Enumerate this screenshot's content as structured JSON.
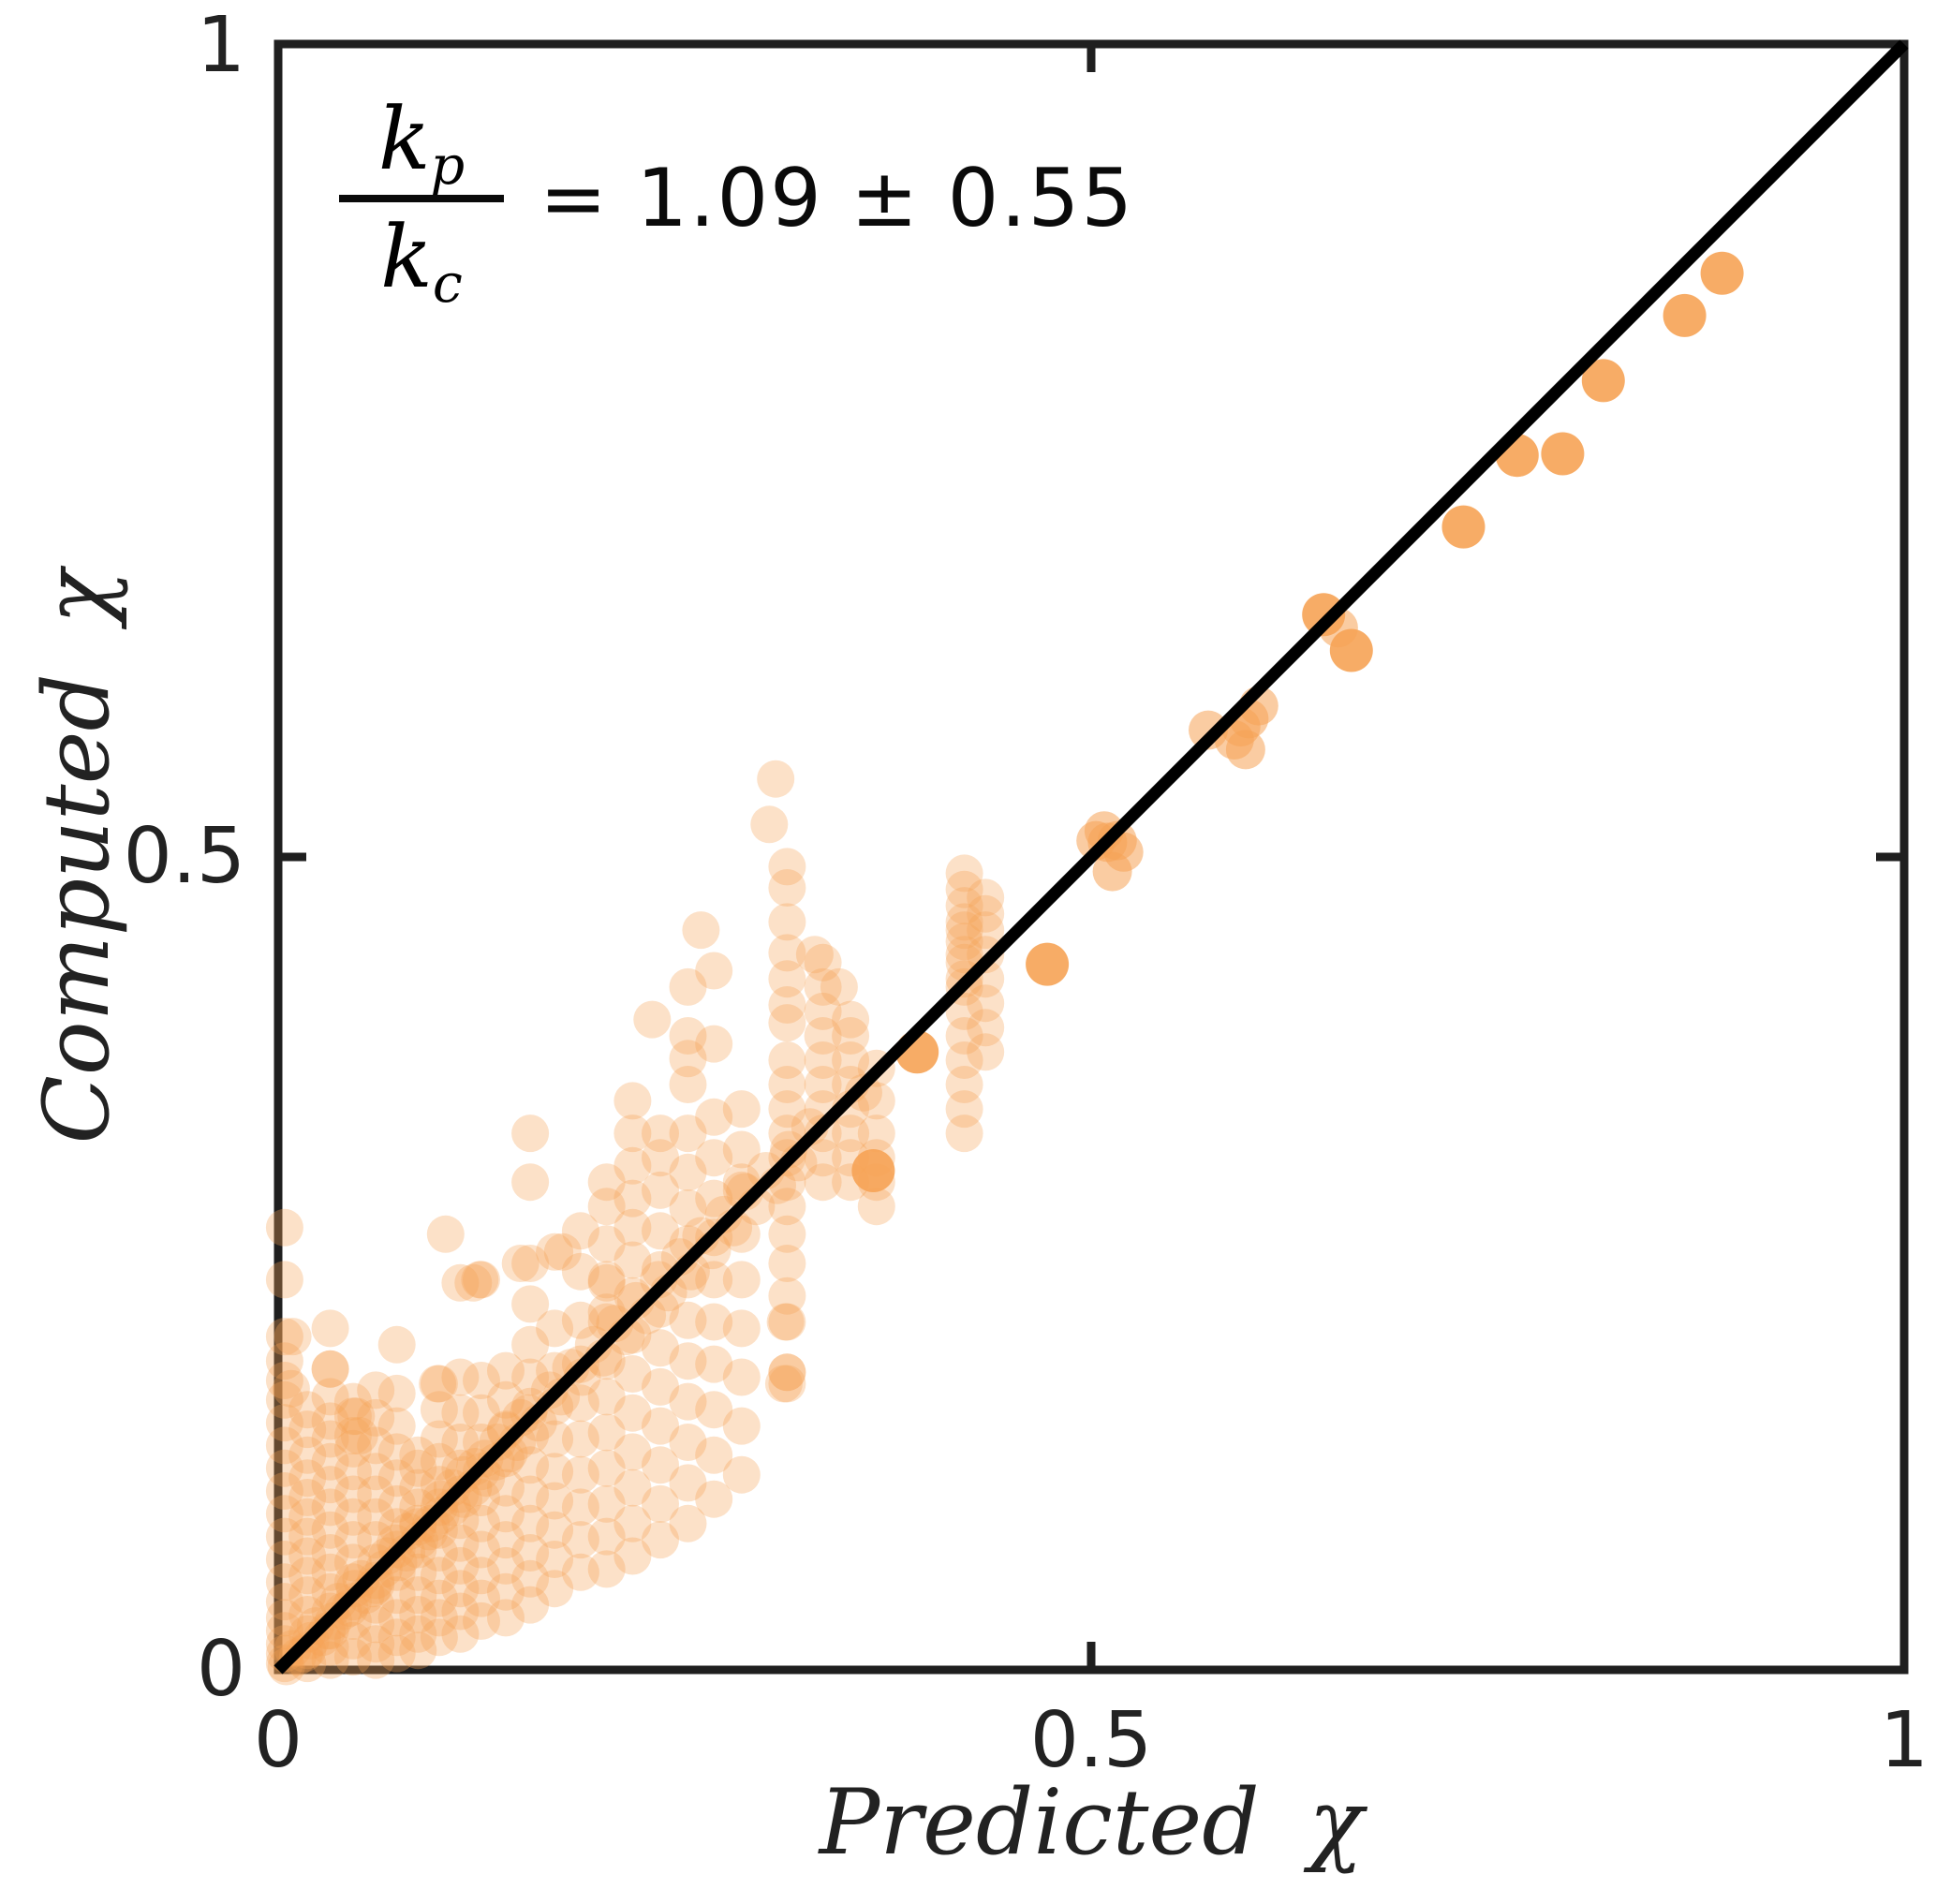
{
  "chart_data": {
    "type": "scatter",
    "xlabel": "Predicted χ",
    "ylabel": "Computed χ",
    "xlim": [
      0,
      1
    ],
    "ylim": [
      0,
      1
    ],
    "xtick_labels": [
      "0",
      "0.5",
      "1"
    ],
    "ytick_labels": [
      "0",
      "0.5",
      "1"
    ],
    "xticks": [
      0,
      0.5,
      1
    ],
    "yticks": [
      0,
      0.5,
      1
    ],
    "grid": "off",
    "legend": "none",
    "identity_line": {
      "from": [
        0,
        0
      ],
      "to": [
        1,
        1
      ],
      "color": "#000000"
    },
    "annotation": {
      "fraction_numerator": "k",
      "fraction_numerator_sub": "p",
      "fraction_denominator": "k",
      "fraction_denominator_sub": "c",
      "equation": "= 1.09 ± 0.55"
    },
    "style": {
      "marker_color": "#F6A355",
      "alpha_cloud": 0.32,
      "alpha_semi": 0.55,
      "alpha_solid": 0.9,
      "frame_color": "#1f1f1f",
      "line_color": "#000000",
      "text_color": "#222222"
    },
    "series": {
      "columns": [
        {
          "x": 0.004,
          "ys": [
            0.004,
            0.01,
            0.016,
            0.024,
            0.032,
            0.042,
            0.054,
            0.068,
            0.082,
            0.096,
            0.11,
            0.124,
            0.138,
            0.152,
            0.166,
            0.178,
            0.19,
            0.205,
            0.24,
            0.272
          ]
        },
        {
          "x": 0.018,
          "ys": [
            0.004,
            0.012,
            0.022,
            0.034,
            0.046,
            0.058,
            0.07,
            0.082,
            0.094,
            0.106,
            0.118,
            0.132,
            0.148,
            0.16
          ]
        },
        {
          "x": 0.032,
          "ys": [
            0.006,
            0.014,
            0.024,
            0.036,
            0.048,
            0.06,
            0.072,
            0.086,
            0.1,
            0.114,
            0.128,
            0.142,
            0.153,
            0.168,
            0.185,
            0.21
          ]
        },
        {
          "x": 0.046,
          "ys": [
            0.008,
            0.018,
            0.03,
            0.042,
            0.054,
            0.066,
            0.08,
            0.094,
            0.108,
            0.122,
            0.136,
            0.144,
            0.156,
            0.165
          ]
        },
        {
          "x": 0.06,
          "ys": [
            0.006,
            0.016,
            0.028,
            0.04,
            0.052,
            0.066,
            0.08,
            0.094,
            0.108,
            0.122,
            0.138,
            0.155,
            0.172
          ]
        },
        {
          "x": 0.073,
          "ys": [
            0.01,
            0.02,
            0.032,
            0.046,
            0.06,
            0.074,
            0.088,
            0.102,
            0.118,
            0.134,
            0.15,
            0.17,
            0.2
          ]
        },
        {
          "x": 0.086,
          "ys": [
            0.012,
            0.022,
            0.034,
            0.046,
            0.06,
            0.074,
            0.088,
            0.1,
            0.112,
            0.124,
            0.132
          ]
        },
        {
          "x": 0.099,
          "ys": [
            0.02,
            0.032,
            0.044,
            0.058,
            0.072,
            0.086,
            0.1,
            0.114,
            0.128,
            0.142,
            0.16,
            0.176
          ]
        },
        {
          "x": 0.112,
          "ys": [
            0.022,
            0.036,
            0.05,
            0.064,
            0.078,
            0.092,
            0.108,
            0.124,
            0.14,
            0.158,
            0.18,
            0.238
          ]
        },
        {
          "x": 0.125,
          "ys": [
            0.03,
            0.044,
            0.058,
            0.074,
            0.09,
            0.106,
            0.122,
            0.14,
            0.158,
            0.178,
            0.24
          ]
        },
        {
          "x": 0.14,
          "ys": [
            0.032,
            0.048,
            0.064,
            0.08,
            0.096,
            0.112,
            0.13,
            0.148,
            0.166,
            0.184
          ]
        },
        {
          "x": 0.155,
          "ys": [
            0.04,
            0.056,
            0.072,
            0.09,
            0.108,
            0.126,
            0.144,
            0.162,
            0.18,
            0.2,
            0.225,
            0.25,
            0.3,
            0.33
          ]
        },
        {
          "x": 0.17,
          "ys": [
            0.05,
            0.068,
            0.086,
            0.104,
            0.122,
            0.142,
            0.162,
            0.184,
            0.21,
            0.257
          ]
        },
        {
          "x": 0.186,
          "ys": [
            0.06,
            0.08,
            0.1,
            0.12,
            0.142,
            0.164,
            0.188,
            0.215,
            0.245,
            0.27
          ]
        },
        {
          "x": 0.202,
          "ys": [
            0.062,
            0.082,
            0.102,
            0.124,
            0.146,
            0.168,
            0.19,
            0.214,
            0.22,
            0.238,
            0.24,
            0.262,
            0.285,
            0.3
          ]
        },
        {
          "x": 0.218,
          "ys": [
            0.07,
            0.09,
            0.112,
            0.134,
            0.158,
            0.182,
            0.206,
            0.23,
            0.252,
            0.272,
            0.29,
            0.31,
            0.33,
            0.35
          ]
        },
        {
          "x": 0.235,
          "ys": [
            0.08,
            0.102,
            0.126,
            0.15,
            0.174,
            0.198,
            0.222,
            0.246,
            0.27,
            0.295,
            0.315,
            0.33
          ]
        },
        {
          "x": 0.252,
          "ys": [
            0.09,
            0.115,
            0.14,
            0.165,
            0.19,
            0.215,
            0.24,
            0.262,
            0.284,
            0.306,
            0.33,
            0.36,
            0.39,
            0.42
          ]
        },
        {
          "x": 0.268,
          "ys": [
            0.105,
            0.132,
            0.16,
            0.188,
            0.214,
            0.24,
            0.266,
            0.29,
            0.315,
            0.34,
            0.385,
            0.43
          ]
        },
        {
          "x": 0.285,
          "ys": [
            0.12,
            0.15,
            0.18,
            0.21,
            0.24,
            0.268,
            0.295,
            0.3,
            0.32,
            0.345
          ]
        },
        {
          "x": 0.313,
          "ys": [
            0.176,
            0.183,
            0.214,
            0.23,
            0.25,
            0.268,
            0.285,
            0.3,
            0.315,
            0.33,
            0.345,
            0.36,
            0.375,
            0.398,
            0.409,
            0.425,
            0.441,
            0.46,
            0.481,
            0.494
          ]
        },
        {
          "x": 0.335,
          "ys": [
            0.3,
            0.315,
            0.33,
            0.345,
            0.36,
            0.375,
            0.39,
            0.405,
            0.42,
            0.435
          ]
        },
        {
          "x": 0.352,
          "ys": [
            0.3,
            0.315,
            0.33,
            0.345,
            0.36,
            0.375,
            0.39,
            0.4
          ]
        },
        {
          "x": 0.368,
          "ys": [
            0.285,
            0.3,
            0.315,
            0.33,
            0.35,
            0.37
          ]
        },
        {
          "x": 0.422,
          "ys": [
            0.33,
            0.345,
            0.36,
            0.375,
            0.39,
            0.405,
            0.42,
            0.425,
            0.435,
            0.44,
            0.448,
            0.455,
            0.46,
            0.47,
            0.48,
            0.49
          ]
        },
        {
          "x": 0.435,
          "ys": [
            0.38,
            0.395,
            0.41,
            0.425,
            0.44,
            0.455,
            0.465,
            0.475
          ]
        }
      ],
      "cloud": [
        [
          0.005,
          0.002
        ],
        [
          0.009,
          0.013
        ],
        [
          0.012,
          0.008
        ],
        [
          0.016,
          0.01
        ],
        [
          0.02,
          0.018
        ],
        [
          0.023,
          0.027
        ],
        [
          0.027,
          0.02
        ],
        [
          0.03,
          0.024
        ],
        [
          0.034,
          0.03
        ],
        [
          0.037,
          0.042
        ],
        [
          0.04,
          0.036
        ],
        [
          0.044,
          0.038
        ],
        [
          0.047,
          0.05
        ],
        [
          0.051,
          0.056
        ],
        [
          0.054,
          0.046
        ],
        [
          0.058,
          0.05
        ],
        [
          0.06,
          0.055
        ],
        [
          0.065,
          0.062
        ],
        [
          0.067,
          0.07
        ],
        [
          0.072,
          0.078
        ],
        [
          0.074,
          0.066
        ],
        [
          0.079,
          0.072
        ],
        [
          0.08,
          0.085
        ],
        [
          0.086,
          0.09
        ],
        [
          0.087,
          0.08
        ],
        [
          0.093,
          0.085
        ],
        [
          0.094,
          0.09
        ],
        [
          0.1,
          0.105
        ],
        [
          0.1,
          0.095
        ],
        [
          0.107,
          0.112
        ],
        [
          0.107,
          0.1
        ],
        [
          0.114,
          0.12
        ],
        [
          0.114,
          0.105
        ],
        [
          0.12,
          0.112
        ],
        [
          0.121,
          0.125
        ],
        [
          0.127,
          0.13
        ],
        [
          0.128,
          0.118
        ],
        [
          0.134,
          0.128
        ],
        [
          0.135,
          0.14
        ],
        [
          0.14,
          0.147
        ],
        [
          0.142,
          0.133
        ],
        [
          0.147,
          0.14
        ],
        [
          0.149,
          0.155
        ],
        [
          0.154,
          0.158
        ],
        [
          0.16,
          0.152
        ],
        [
          0.167,
          0.172
        ],
        [
          0.174,
          0.168
        ],
        [
          0.18,
          0.186
        ],
        [
          0.187,
          0.18
        ],
        [
          0.194,
          0.2
        ],
        [
          0.2,
          0.192
        ],
        [
          0.207,
          0.213
        ],
        [
          0.214,
          0.205
        ],
        [
          0.22,
          0.227
        ],
        [
          0.227,
          0.218
        ],
        [
          0.234,
          0.24
        ],
        [
          0.24,
          0.232
        ],
        [
          0.247,
          0.254
        ],
        [
          0.254,
          0.245
        ],
        [
          0.26,
          0.267
        ],
        [
          0.267,
          0.258
        ],
        [
          0.274,
          0.28
        ],
        [
          0.28,
          0.272
        ],
        [
          0.287,
          0.294
        ],
        [
          0.294,
          0.285
        ],
        [
          0.3,
          0.307
        ],
        [
          0.307,
          0.298
        ],
        [
          0.314,
          0.32
        ],
        [
          0.32,
          0.312
        ],
        [
          0.327,
          0.334
        ],
        [
          0.252,
          0.376
        ],
        [
          0.124,
          0.24
        ],
        [
          0.149,
          0.25
        ],
        [
          0.175,
          0.257
        ],
        [
          0.312,
          0.214
        ],
        [
          0.313,
          0.183
        ],
        [
          0.311,
          0.176
        ],
        [
          0.098,
          0.176
        ],
        [
          0.12,
          0.238
        ],
        [
          0.009,
          0.205
        ],
        [
          0.032,
          0.185
        ],
        [
          0.008,
          0.173
        ],
        [
          0.048,
          0.156
        ],
        [
          0.05,
          0.144
        ],
        [
          0.103,
          0.268
        ],
        [
          0.23,
          0.4
        ],
        [
          0.26,
          0.455
        ],
        [
          0.302,
          0.52
        ],
        [
          0.306,
          0.548
        ],
        [
          0.36,
          0.355
        ],
        [
          0.345,
          0.42
        ],
        [
          0.33,
          0.44
        ]
      ],
      "semi": [
        [
          0.503,
          0.51
        ],
        [
          0.51,
          0.509
        ],
        [
          0.513,
          0.491
        ],
        [
          0.52,
          0.503
        ],
        [
          0.508,
          0.516
        ],
        [
          0.516,
          0.51
        ],
        [
          0.572,
          0.578
        ],
        [
          0.588,
          0.572
        ],
        [
          0.595,
          0.566
        ],
        [
          0.597,
          0.585
        ],
        [
          0.603,
          0.593
        ],
        [
          0.592,
          0.58
        ],
        [
          0.652,
          0.641
        ]
      ],
      "solid": [
        [
          0.366,
          0.307
        ],
        [
          0.393,
          0.38
        ],
        [
          0.473,
          0.434
        ],
        [
          0.643,
          0.649
        ],
        [
          0.66,
          0.627
        ],
        [
          0.729,
          0.703
        ],
        [
          0.762,
          0.747
        ],
        [
          0.79,
          0.748
        ],
        [
          0.815,
          0.793
        ],
        [
          0.865,
          0.833
        ],
        [
          0.888,
          0.859
        ]
      ]
    }
  }
}
